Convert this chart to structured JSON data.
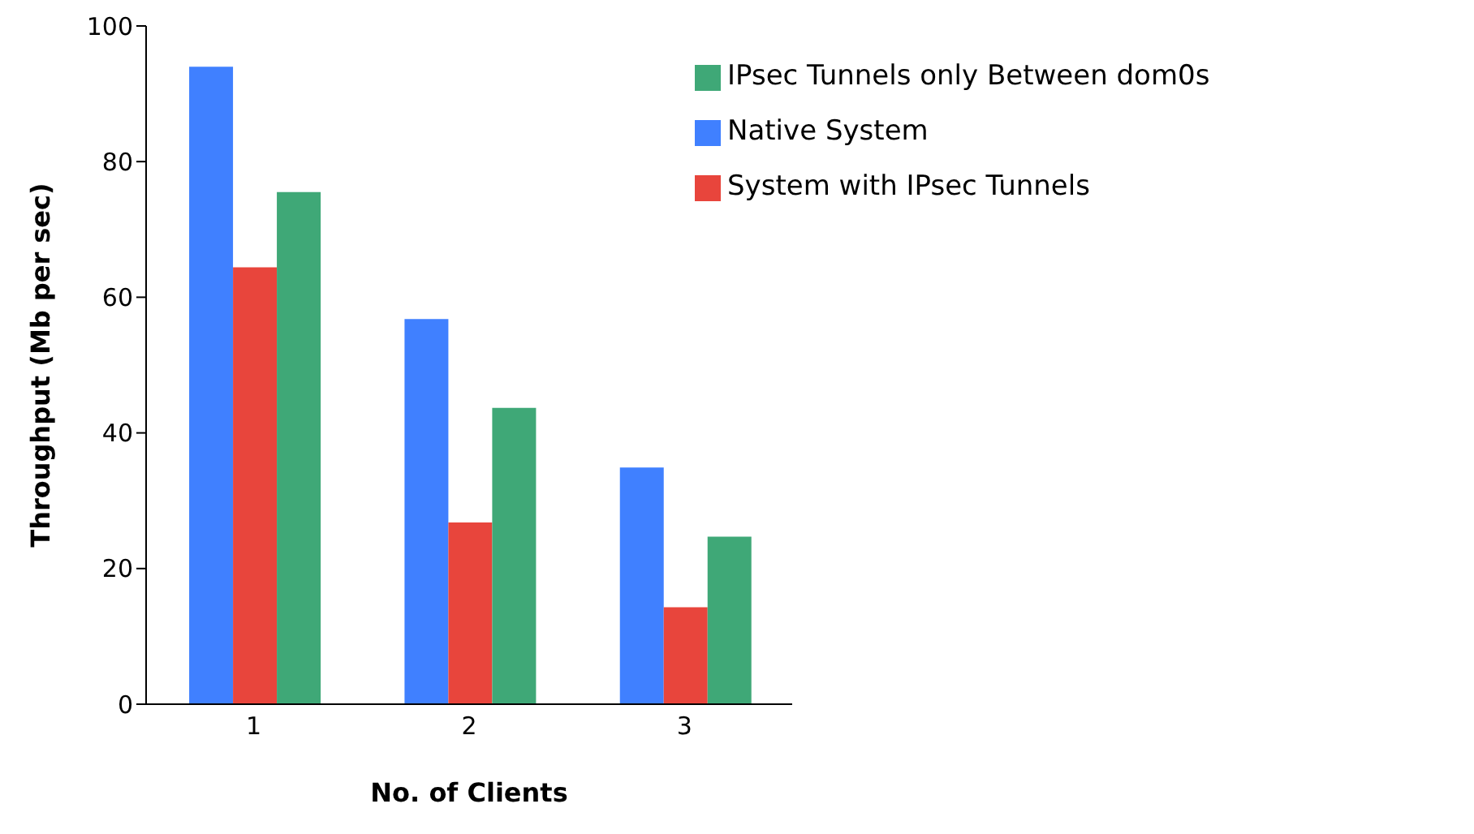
{
  "chart_data": {
    "type": "bar",
    "xlabel": "No. of Clients",
    "ylabel": "Throughput (Mb per sec)",
    "categories": [
      "1",
      "2",
      "3"
    ],
    "series": [
      {
        "name": "Native System",
        "color": "#4080ff",
        "values": [
          94,
          56.8,
          34.9
        ]
      },
      {
        "name": "System with IPsec Tunnels",
        "color": "#e8453c",
        "values": [
          64.4,
          26.8,
          14.3
        ]
      },
      {
        "name": "IPsec Tunnels only Between dom0s",
        "color": "#3fa877",
        "values": [
          75.5,
          43.7,
          24.7
        ]
      }
    ],
    "ylim": [
      0,
      100
    ],
    "yticks": [
      0,
      20,
      40,
      60,
      80,
      100
    ],
    "grid": false,
    "legend": "top right"
  }
}
